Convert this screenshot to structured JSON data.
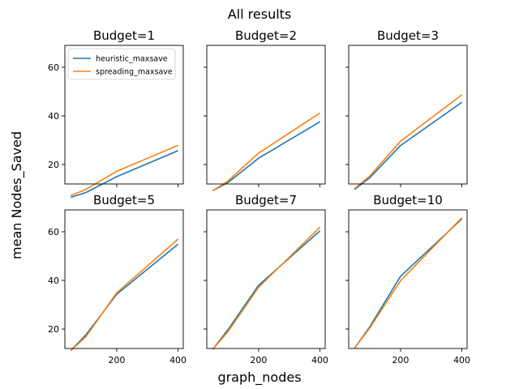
{
  "figure": {
    "suptitle": "All results",
    "xlabel": "graph_nodes",
    "ylabel": "mean Nodes_Saved"
  },
  "legend": {
    "placement": "upper-left of first panel",
    "entries": [
      "heuristic_maxsave",
      "spreading_maxsave"
    ]
  },
  "colors": {
    "heuristic_maxsave": "#1f77b4",
    "spreading_maxsave": "#ff7f0e"
  },
  "chart_data": [
    {
      "type": "line",
      "title": "Budget=1",
      "x": [
        50,
        100,
        200,
        400
      ],
      "series": [
        {
          "name": "heuristic_maxsave",
          "values": [
            6.5,
            8.5,
            15.0,
            25.7
          ]
        },
        {
          "name": "spreading_maxsave",
          "values": [
            7.2,
            9.8,
            17.2,
            27.9
          ]
        }
      ],
      "xlim": [
        31,
        417
      ],
      "ylim": [
        12,
        69
      ],
      "xticks": [
        200,
        400
      ],
      "yticks": [
        20,
        40,
        60
      ],
      "grid": false
    },
    {
      "type": "line",
      "title": "Budget=2",
      "x": [
        50,
        100,
        200,
        400
      ],
      "series": [
        {
          "name": "heuristic_maxsave",
          "values": [
            9.2,
            12.6,
            22.6,
            37.6
          ]
        },
        {
          "name": "spreading_maxsave",
          "values": [
            9.2,
            13.2,
            24.7,
            41.2
          ]
        }
      ],
      "xlim": [
        31,
        417
      ],
      "ylim": [
        12,
        69
      ],
      "xticks": [
        200,
        400
      ],
      "yticks": [
        20,
        40,
        60
      ],
      "grid": false
    },
    {
      "type": "line",
      "title": "Budget=3",
      "x": [
        50,
        100,
        200,
        400
      ],
      "series": [
        {
          "name": "heuristic_maxsave",
          "values": [
            9.7,
            14.6,
            27.8,
            45.6
          ]
        },
        {
          "name": "spreading_maxsave",
          "values": [
            10.1,
            15.3,
            29.6,
            48.7
          ]
        }
      ],
      "xlim": [
        31,
        417
      ],
      "ylim": [
        12,
        69
      ],
      "xticks": [
        200,
        400
      ],
      "yticks": [
        20,
        40,
        60
      ],
      "grid": false
    },
    {
      "type": "line",
      "title": "Budget=5",
      "x": [
        50,
        100,
        200,
        400
      ],
      "series": [
        {
          "name": "heuristic_maxsave",
          "values": [
            11.1,
            17.7,
            34.3,
            54.9
          ]
        },
        {
          "name": "spreading_maxsave",
          "values": [
            11.1,
            16.9,
            34.9,
            57.0
          ]
        }
      ],
      "xlim": [
        31,
        417
      ],
      "ylim": [
        12,
        69
      ],
      "xticks": [
        200,
        400
      ],
      "yticks": [
        20,
        40,
        60
      ],
      "grid": false
    },
    {
      "type": "line",
      "title": "Budget=7",
      "x": [
        50,
        100,
        200,
        400
      ],
      "series": [
        {
          "name": "heuristic_maxsave",
          "values": [
            11.6,
            19.7,
            38.0,
            60.4
          ]
        },
        {
          "name": "spreading_maxsave",
          "values": [
            11.6,
            18.9,
            37.2,
            61.9
          ]
        }
      ],
      "xlim": [
        31,
        417
      ],
      "ylim": [
        12,
        69
      ],
      "xticks": [
        200,
        400
      ],
      "yticks": [
        20,
        40,
        60
      ],
      "grid": false
    },
    {
      "type": "line",
      "title": "Budget=10",
      "x": [
        50,
        100,
        200,
        400
      ],
      "series": [
        {
          "name": "heuristic_maxsave",
          "values": [
            12.1,
            21.0,
            41.7,
            65.3
          ]
        },
        {
          "name": "spreading_maxsave",
          "values": [
            12.1,
            20.5,
            39.9,
            65.8
          ]
        }
      ],
      "xlim": [
        31,
        417
      ],
      "ylim": [
        12,
        69
      ],
      "xticks": [
        200,
        400
      ],
      "yticks": [
        20,
        40,
        60
      ],
      "grid": false
    }
  ]
}
